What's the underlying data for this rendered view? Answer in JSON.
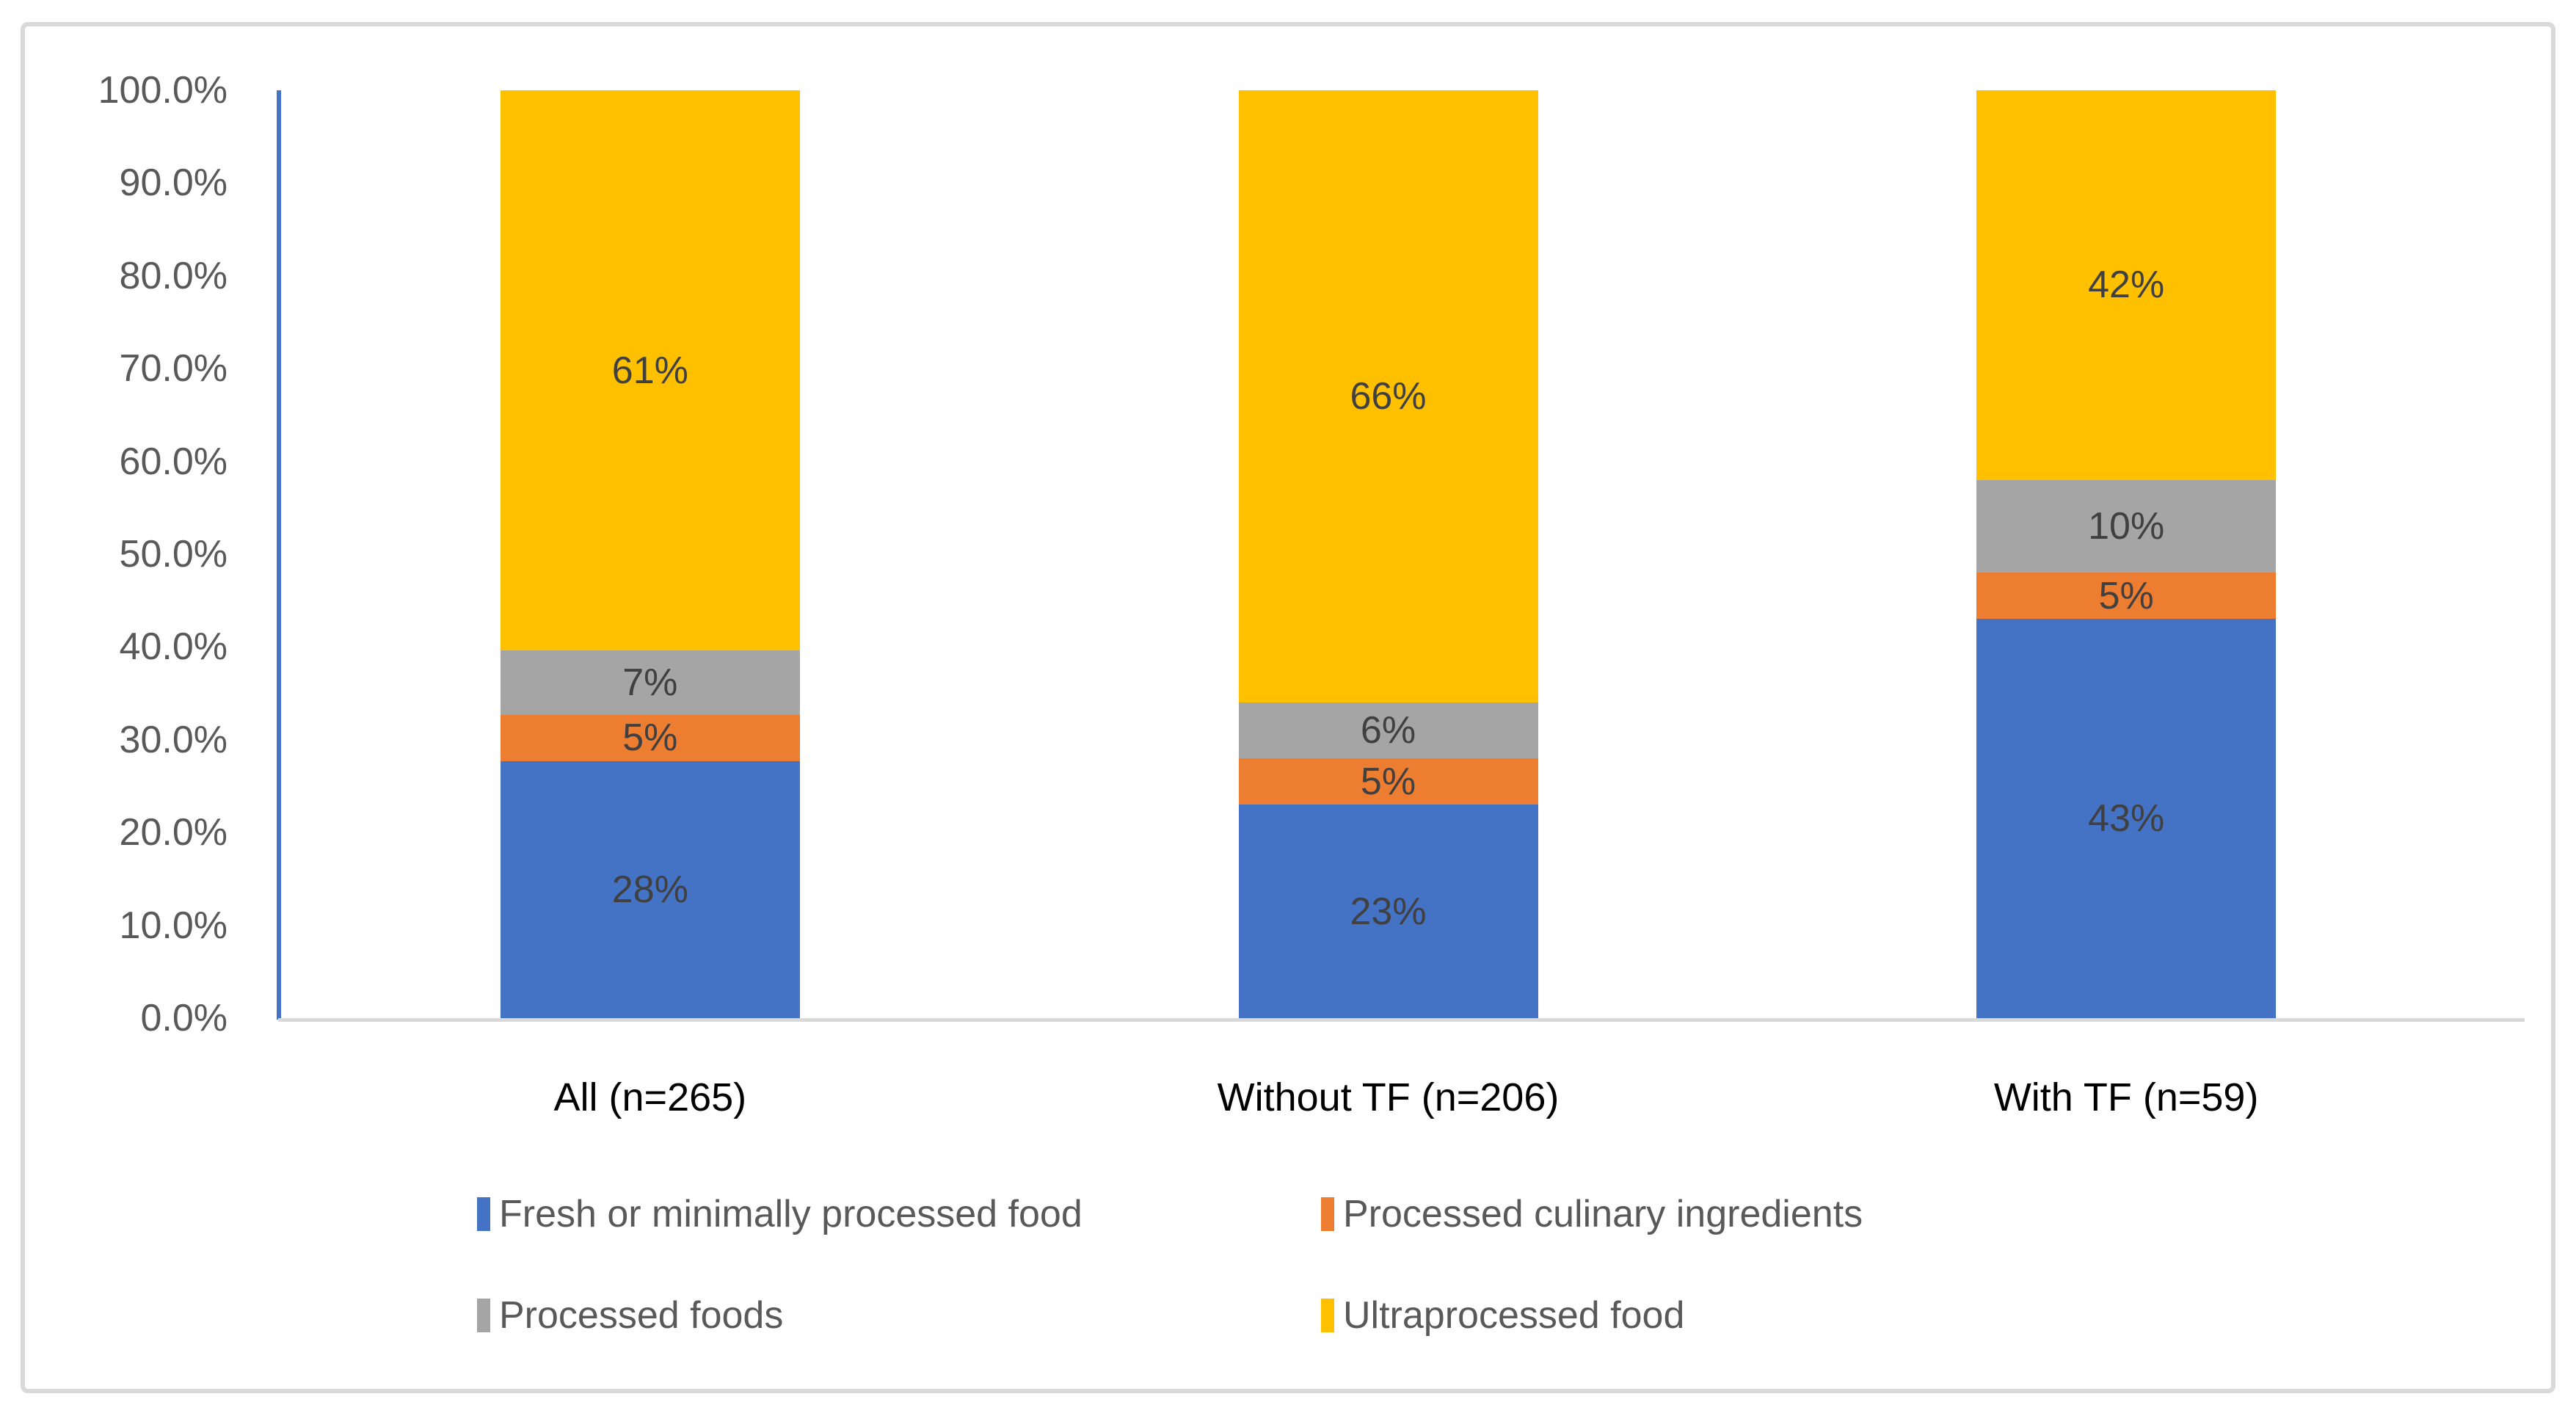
{
  "chart_data": {
    "type": "bar",
    "variant": "stacked-100-percent",
    "title": "",
    "categories": [
      "All (n=265)",
      "Without TF (n=206)",
      "With TF (n=59)"
    ],
    "series": [
      {
        "name": "Fresh or minimally processed food",
        "color": "#4472C4",
        "values": [
          28,
          23,
          43
        ]
      },
      {
        "name": "Processed culinary ingredients",
        "color": "#ED7D31",
        "values": [
          5,
          5,
          5
        ]
      },
      {
        "name": "Processed foods",
        "color": "#A5A5A5",
        "values": [
          7,
          6,
          10
        ]
      },
      {
        "name": "Ultraprocessed food",
        "color": "#FFC000",
        "values": [
          61,
          66,
          42
        ]
      }
    ],
    "data_labels": [
      [
        "28%",
        "5%",
        "7%",
        "61%"
      ],
      [
        "23%",
        "5%",
        "6%",
        "66%"
      ],
      [
        "43%",
        "5%",
        "10%",
        "42%"
      ]
    ],
    "y_axis": {
      "min": 0,
      "max": 100,
      "step": 10,
      "tick_labels": [
        "0.0%",
        "10.0%",
        "20.0%",
        "30.0%",
        "40.0%",
        "50.0%",
        "60.0%",
        "70.0%",
        "80.0%",
        "90.0%",
        "100.0%"
      ],
      "axis_line_color": "#4472C4"
    },
    "x_axis": {
      "line_color": "#D9D9D9"
    },
    "legend_position": "bottom",
    "grid": false,
    "colors": {
      "tick_label": "#595959",
      "data_label": "#404040",
      "category_label": "#000000",
      "legend_label": "#595959",
      "frame_border": "#D9D9D9",
      "background": "#FFFFFF"
    }
  }
}
